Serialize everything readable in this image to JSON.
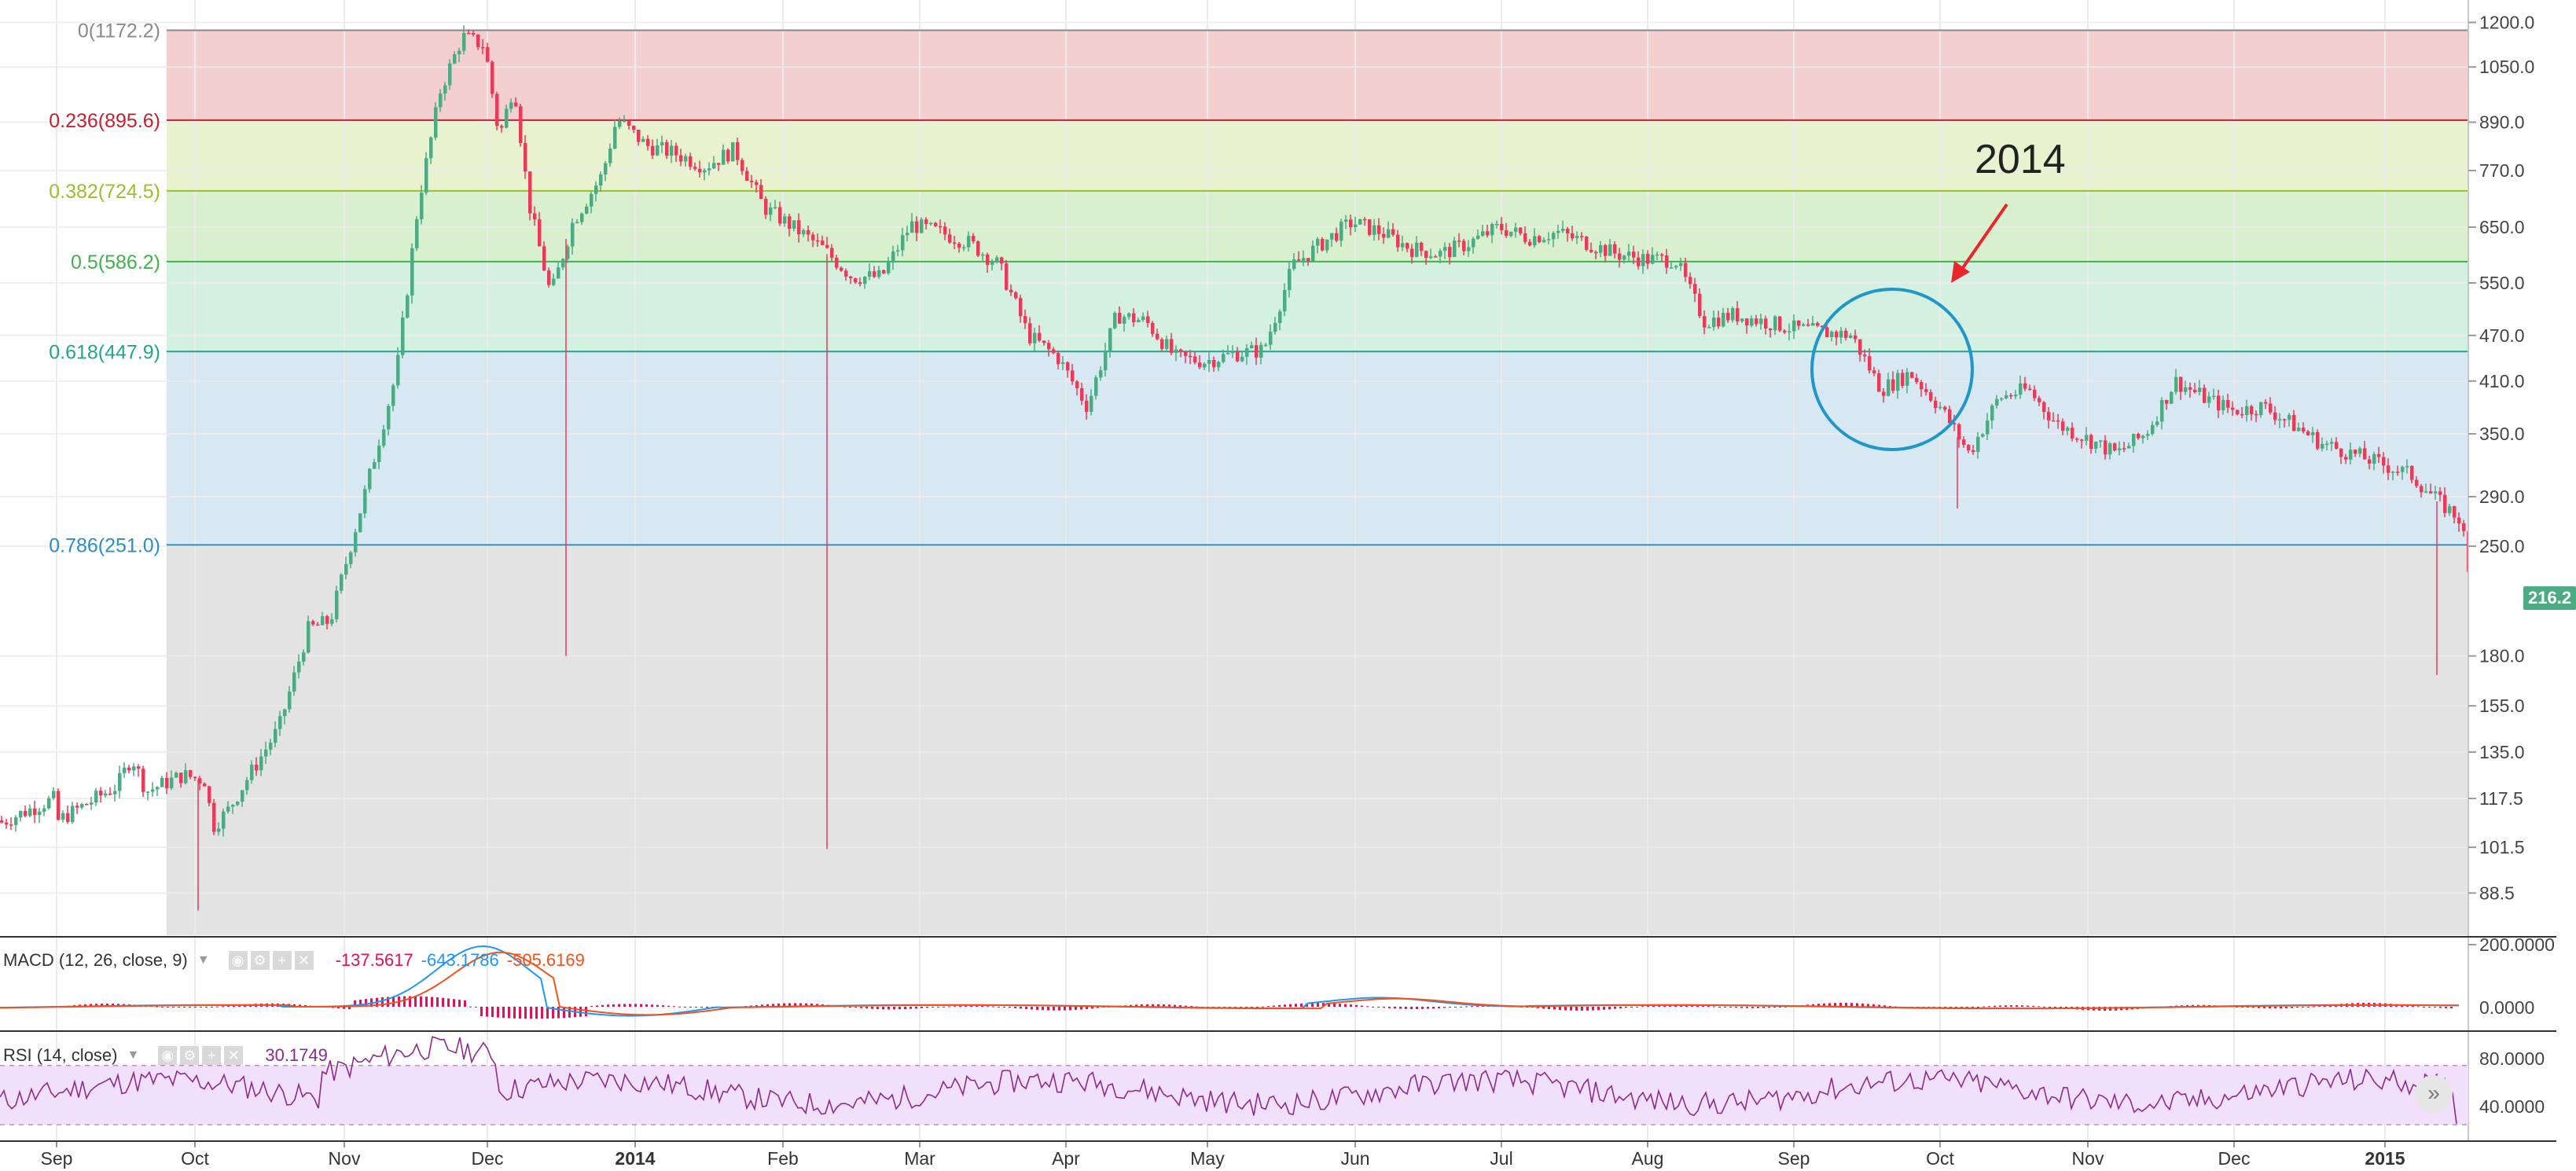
{
  "chart_data": {
    "type": "candlestick",
    "title": "",
    "x_ticks": [
      "Sep",
      "Oct",
      "Nov",
      "Dec",
      "2014",
      "Feb",
      "Mar",
      "Apr",
      "May",
      "Jun",
      "Jul",
      "Aug",
      "Sep",
      "Oct",
      "Nov",
      "Dec",
      "2015"
    ],
    "y_ticks": [
      "1200.0",
      "1050.0",
      "890.0",
      "770.0",
      "650.0",
      "550.0",
      "470.0",
      "410.0",
      "350.0",
      "290.0",
      "250.0",
      "180.0",
      "155.0",
      "135.0",
      "117.5",
      "101.5",
      "88.5"
    ],
    "y_scale": "log",
    "y_range": [
      78,
      1230
    ],
    "last_price": "216.2",
    "close_path": [
      {
        "m": 0.0,
        "v": 110
      },
      {
        "m": 0.4,
        "v": 122
      },
      {
        "m": 0.5,
        "v": 133
      },
      {
        "m": 0.6,
        "v": 120
      },
      {
        "m": 0.85,
        "v": 126
      },
      {
        "m": 1.0,
        "v": 124
      },
      {
        "m": 1.05,
        "v": 108
      },
      {
        "m": 1.15,
        "v": 113
      },
      {
        "m": 1.3,
        "v": 126
      },
      {
        "m": 1.5,
        "v": 145
      },
      {
        "m": 1.7,
        "v": 195
      },
      {
        "m": 1.85,
        "v": 200
      },
      {
        "m": 2.1,
        "v": 300
      },
      {
        "m": 2.3,
        "v": 420
      },
      {
        "m": 2.45,
        "v": 700
      },
      {
        "m": 2.6,
        "v": 980
      },
      {
        "m": 2.75,
        "v": 1150
      },
      {
        "m": 2.9,
        "v": 1120
      },
      {
        "m": 3.0,
        "v": 850
      },
      {
        "m": 3.1,
        "v": 1000
      },
      {
        "m": 3.2,
        "v": 700
      },
      {
        "m": 3.35,
        "v": 530
      },
      {
        "m": 3.5,
        "v": 660
      },
      {
        "m": 3.7,
        "v": 760
      },
      {
        "m": 3.8,
        "v": 900
      },
      {
        "m": 4.0,
        "v": 830
      },
      {
        "m": 4.2,
        "v": 810
      },
      {
        "m": 4.4,
        "v": 780
      },
      {
        "m": 4.6,
        "v": 820
      },
      {
        "m": 4.8,
        "v": 690
      },
      {
        "m": 5.0,
        "v": 650
      },
      {
        "m": 5.2,
        "v": 610
      },
      {
        "m": 5.4,
        "v": 560
      },
      {
        "m": 5.6,
        "v": 560
      },
      {
        "m": 5.8,
        "v": 655
      },
      {
        "m": 6.0,
        "v": 640
      },
      {
        "m": 6.2,
        "v": 620
      },
      {
        "m": 6.4,
        "v": 580
      },
      {
        "m": 6.6,
        "v": 470
      },
      {
        "m": 6.8,
        "v": 440
      },
      {
        "m": 7.0,
        "v": 380
      },
      {
        "m": 7.2,
        "v": 500
      },
      {
        "m": 7.4,
        "v": 490
      },
      {
        "m": 7.6,
        "v": 440
      },
      {
        "m": 7.8,
        "v": 435
      },
      {
        "m": 8.0,
        "v": 445
      },
      {
        "m": 8.2,
        "v": 450
      },
      {
        "m": 8.4,
        "v": 580
      },
      {
        "m": 8.6,
        "v": 620
      },
      {
        "m": 8.8,
        "v": 660
      },
      {
        "m": 9.0,
        "v": 640
      },
      {
        "m": 9.2,
        "v": 610
      },
      {
        "m": 9.4,
        "v": 600
      },
      {
        "m": 9.6,
        "v": 620
      },
      {
        "m": 9.8,
        "v": 650
      },
      {
        "m": 10.0,
        "v": 630
      },
      {
        "m": 10.2,
        "v": 640
      },
      {
        "m": 10.4,
        "v": 620
      },
      {
        "m": 10.6,
        "v": 600
      },
      {
        "m": 10.8,
        "v": 590
      },
      {
        "m": 11.0,
        "v": 590
      },
      {
        "m": 11.2,
        "v": 490
      },
      {
        "m": 11.4,
        "v": 500
      },
      {
        "m": 11.6,
        "v": 490
      },
      {
        "m": 11.8,
        "v": 480
      },
      {
        "m": 12.0,
        "v": 475
      },
      {
        "m": 12.2,
        "v": 470
      },
      {
        "m": 12.4,
        "v": 400
      },
      {
        "m": 12.6,
        "v": 420
      },
      {
        "m": 12.8,
        "v": 380
      },
      {
        "m": 13.0,
        "v": 330
      },
      {
        "m": 13.2,
        "v": 390
      },
      {
        "m": 13.4,
        "v": 400
      },
      {
        "m": 13.6,
        "v": 360
      },
      {
        "m": 13.8,
        "v": 345
      },
      {
        "m": 14.0,
        "v": 330
      },
      {
        "m": 14.2,
        "v": 350
      },
      {
        "m": 14.4,
        "v": 410
      },
      {
        "m": 14.6,
        "v": 390
      },
      {
        "m": 14.8,
        "v": 375
      },
      {
        "m": 15.0,
        "v": 380
      },
      {
        "m": 15.2,
        "v": 360
      },
      {
        "m": 15.4,
        "v": 340
      },
      {
        "m": 15.6,
        "v": 330
      },
      {
        "m": 15.8,
        "v": 320
      },
      {
        "m": 16.0,
        "v": 310
      },
      {
        "m": 16.2,
        "v": 285
      },
      {
        "m": 16.35,
        "v": 270
      },
      {
        "m": 16.45,
        "v": 190
      },
      {
        "m": 16.6,
        "v": 216.2
      }
    ],
    "fibonacci": [
      {
        "label": "0(1172.2)",
        "value": 1172.2,
        "color": "#8a8a8a",
        "fill": "#f3cfcf"
      },
      {
        "label": "0.236(895.6)",
        "value": 895.6,
        "color": "#c3222e",
        "fill": "#e9f2cf"
      },
      {
        "label": "0.382(724.5)",
        "value": 724.5,
        "color": "#9bbf2c",
        "fill": "#d8f0cd"
      },
      {
        "label": "0.5(586.2)",
        "value": 586.2,
        "color": "#3fb24b",
        "fill": "#d3f0e0"
      },
      {
        "label": "0.618(447.9)",
        "value": 447.9,
        "color": "#23a58b",
        "fill": "#d7e8f2"
      },
      {
        "label": "0.786(251.0)",
        "value": 251.0,
        "color": "#2b8fc1",
        "fill": "#e3e3e3"
      }
    ],
    "annotation": {
      "text": "2014",
      "circle_color": "#2196c9",
      "arrow_color": "#e8262b"
    },
    "colors": {
      "up": "#4dab84",
      "down": "#e83b5a",
      "grid": "#ebebeb"
    },
    "macd": {
      "label": "MACD (12, 26, close, 9)",
      "hist": "-137.5617",
      "macd": "-643.1786",
      "signal": "-505.6169",
      "y_ticks": [
        "200.0000",
        "0.0000"
      ],
      "colors": {
        "hist": "#e0105b",
        "macd": "#2196f3",
        "signal": "#f4511e"
      }
    },
    "rsi": {
      "label": "RSI (14, close)",
      "value": "30.1749",
      "y_ticks": [
        "80.0000",
        "40.0000"
      ],
      "color": "#8e2a8e",
      "band_fill": "#f1e0fb"
    }
  }
}
